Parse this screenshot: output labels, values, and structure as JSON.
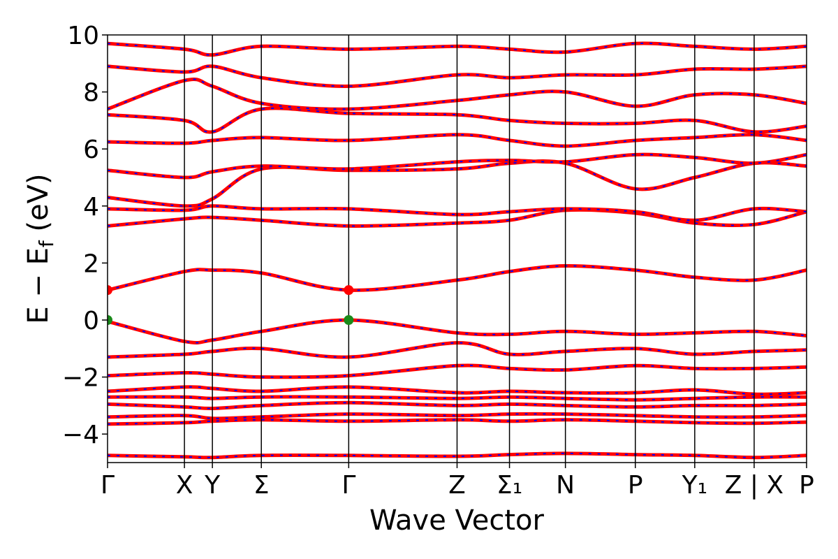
{
  "chart_data": {
    "type": "line",
    "xlabel": "Wave Vector",
    "ylabel": "E − Ef (eV)",
    "ylabel_main": "E − E",
    "ylabel_sub": "f",
    "ylabel_unit": " (eV)",
    "ylim": [
      -5,
      10
    ],
    "yticks": [
      10,
      8,
      6,
      4,
      2,
      0,
      -2,
      -4
    ],
    "ytick_labels": [
      "10",
      "8",
      "6",
      "4",
      "2",
      "0",
      "−2",
      "−4"
    ],
    "kpoints": [
      {
        "label": "Γ",
        "x": 0.0
      },
      {
        "label": "X",
        "x": 1.1
      },
      {
        "label": "Y",
        "x": 1.5
      },
      {
        "label": "Σ",
        "x": 2.2
      },
      {
        "label": "Γ",
        "x": 3.45
      },
      {
        "label": "Z",
        "x": 5.0
      },
      {
        "label": "Σ₁",
        "x": 5.75
      },
      {
        "label": "N",
        "x": 6.55
      },
      {
        "label": "P",
        "x": 7.55
      },
      {
        "label": "Y₁",
        "x": 8.4
      },
      {
        "label": "Z | X",
        "x": 9.25
      },
      {
        "label": "P",
        "x": 10.0
      }
    ],
    "xlim": [
      0,
      10
    ],
    "series": [
      {
        "values": [
          -4.75,
          -4.8,
          -4.82,
          -4.75,
          -4.75,
          -4.78,
          -4.72,
          -4.68,
          -4.72,
          -4.75,
          -4.82,
          -4.75
        ]
      },
      {
        "values": [
          -3.65,
          -3.6,
          -3.55,
          -3.5,
          -3.55,
          -3.5,
          -3.55,
          -3.5,
          -3.55,
          -3.6,
          -3.62,
          -3.58
        ]
      },
      {
        "values": [
          -3.4,
          -3.35,
          -3.45,
          -3.4,
          -3.3,
          -3.35,
          -3.3,
          -3.3,
          -3.35,
          -3.4,
          -3.4,
          -3.35
        ]
      },
      {
        "values": [
          -2.95,
          -3.05,
          -3.1,
          -3.0,
          -2.9,
          -3.0,
          -2.95,
          -3.0,
          -3.05,
          -3.0,
          -3.0,
          -2.95
        ]
      },
      {
        "values": [
          -2.7,
          -2.7,
          -2.75,
          -2.7,
          -2.7,
          -2.75,
          -2.7,
          -2.75,
          -2.8,
          -2.75,
          -2.7,
          -2.7
        ]
      },
      {
        "values": [
          -2.5,
          -2.35,
          -2.4,
          -2.5,
          -2.35,
          -2.55,
          -2.5,
          -2.55,
          -2.55,
          -2.45,
          -2.6,
          -2.55
        ]
      },
      {
        "values": [
          -1.95,
          -1.85,
          -1.9,
          -2.0,
          -1.95,
          -1.6,
          -1.7,
          -1.75,
          -1.6,
          -1.7,
          -1.7,
          -1.65
        ]
      },
      {
        "values": [
          -1.3,
          -1.2,
          -1.1,
          -1.0,
          -1.3,
          -0.8,
          -1.2,
          -1.1,
          -1.0,
          -1.2,
          -1.1,
          -1.05
        ]
      },
      {
        "values": [
          -0.05,
          -0.75,
          -0.7,
          -0.4,
          0.0,
          -0.45,
          -0.5,
          -0.4,
          -0.5,
          -0.45,
          -0.4,
          -0.55
        ]
      },
      {
        "values": [
          1.05,
          1.7,
          1.75,
          1.65,
          1.05,
          1.4,
          1.7,
          1.9,
          1.75,
          1.5,
          1.4,
          1.75
        ]
      },
      {
        "values": [
          3.3,
          3.55,
          3.6,
          3.5,
          3.3,
          3.4,
          3.5,
          3.85,
          3.75,
          3.4,
          3.35,
          3.8
        ]
      },
      {
        "values": [
          3.9,
          3.85,
          4.0,
          3.9,
          3.9,
          3.7,
          3.8,
          3.9,
          3.8,
          3.5,
          3.9,
          3.8
        ]
      },
      {
        "values": [
          4.3,
          4.0,
          4.25,
          5.3,
          5.25,
          5.3,
          5.5,
          5.5,
          4.6,
          5.0,
          5.5,
          5.4
        ]
      },
      {
        "values": [
          5.25,
          5.0,
          5.2,
          5.4,
          5.3,
          5.55,
          5.6,
          5.55,
          5.8,
          5.7,
          5.5,
          5.8
        ]
      },
      {
        "values": [
          6.25,
          6.2,
          6.3,
          6.4,
          6.3,
          6.5,
          6.3,
          6.1,
          6.3,
          6.4,
          6.5,
          6.3
        ]
      },
      {
        "values": [
          7.2,
          7.0,
          6.6,
          7.4,
          7.25,
          7.2,
          7.0,
          6.9,
          6.9,
          7.0,
          6.6,
          6.8
        ]
      },
      {
        "values": [
          7.4,
          8.4,
          8.2,
          7.6,
          7.4,
          7.7,
          7.9,
          8.0,
          7.5,
          7.9,
          7.9,
          7.6
        ]
      },
      {
        "values": [
          8.9,
          8.7,
          8.9,
          8.5,
          8.2,
          8.6,
          8.5,
          8.6,
          8.6,
          8.8,
          8.8,
          8.9
        ]
      },
      {
        "values": [
          9.7,
          9.5,
          9.3,
          9.6,
          9.5,
          9.6,
          9.5,
          9.4,
          9.7,
          9.6,
          9.5,
          9.6
        ]
      }
    ],
    "markers": [
      {
        "x": 0.0,
        "y": 1.05,
        "color": "#ff0000"
      },
      {
        "x": 3.45,
        "y": 1.05,
        "color": "#ff0000"
      },
      {
        "x": 0.0,
        "y": 0.0,
        "color": "#1a8a1a"
      },
      {
        "x": 3.45,
        "y": 0.0,
        "color": "#1a8a1a"
      }
    ],
    "colors": {
      "band": "#ff0000",
      "overlay": "#0000ff",
      "vline": "#000000"
    }
  }
}
